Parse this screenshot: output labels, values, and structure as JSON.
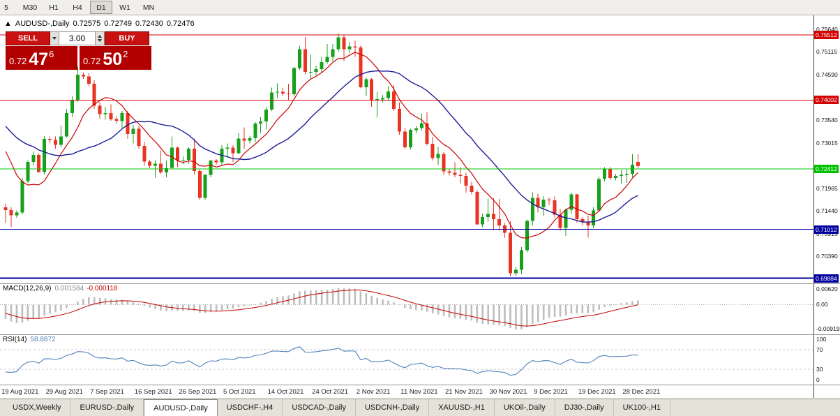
{
  "toolbar": {
    "timeframes": [
      {
        "label": "5",
        "active": false
      },
      {
        "label": "M30",
        "active": false
      },
      {
        "label": "H1",
        "active": false
      },
      {
        "label": "H4",
        "active": false
      },
      {
        "label": "D1",
        "active": true
      },
      {
        "label": "W1",
        "active": false
      },
      {
        "label": "MN",
        "active": false
      }
    ]
  },
  "chart": {
    "header": {
      "marker": "▲",
      "symbol": "AUDUSD-,Daily",
      "open": "0.72575",
      "high": "0.72749",
      "low": "0.72430",
      "close": "0.72476"
    }
  },
  "one_click": {
    "sell_label": "SELL",
    "buy_label": "BUY",
    "volume": "3.00",
    "sell_price_prefix": "0.72",
    "sell_price_big": "47",
    "sell_price_sup": "6",
    "buy_price_prefix": "0.72",
    "buy_price_big": "50",
    "buy_price_sup": "2"
  },
  "indicators": {
    "macd": {
      "name": "MACD(12,26,9)",
      "value": "0.001584",
      "signal_value": "-0.000118",
      "axis": {
        "top": "0.00620",
        "zero": "0.00",
        "bottom": "-0.00919"
      }
    },
    "rsi": {
      "name": "RSI(14)",
      "value": "58.8872",
      "axis": [
        "100",
        "70",
        "30",
        "0"
      ],
      "levels": [
        70,
        30
      ]
    }
  },
  "price_axis": {
    "grid_labels": [
      "0.75640",
      "0.75115",
      "0.74590",
      "0.73540",
      "0.73015",
      "0.71965",
      "0.71440",
      "0.70915",
      "0.70390"
    ]
  },
  "hlines": [
    {
      "price": 0.75512,
      "label": "0.75512",
      "color": "#d40000",
      "width": 1
    },
    {
      "price": 0.74002,
      "label": "0.74002",
      "color": "#d40000",
      "width": 1
    },
    {
      "price": 0.72412,
      "label": "0.72412",
      "color": "#00c300",
      "width": 1
    },
    {
      "price": 0.71012,
      "label": "0.71012",
      "color": "#0000a0",
      "width": 1
    },
    {
      "price": 0.69884,
      "label": "0.69884",
      "color": "#0000a0",
      "width": 2
    }
  ],
  "colors": {
    "candle_up": "#17a01c",
    "candle_down": "#ea3323",
    "ma_fast": "#cc0000",
    "ma_slow": "#1c1c96",
    "macd_hist": "#bdbdbd",
    "macd_signal": "#c00000",
    "rsi_line": "#4f81bd",
    "hline_red": "#d40000",
    "hline_green": "#00c300",
    "hline_blue": "#0000a0",
    "buy_sell_red": "#b20000"
  },
  "chart_data": {
    "type": "candlestick",
    "symbol": "AUDUSD-",
    "timeframe": "Daily",
    "price_range": [
      0.6978,
      0.7596
    ],
    "ma_fast": {
      "period": 8,
      "type": "sma"
    },
    "ma_slow": {
      "period": 20,
      "type": "sma"
    },
    "macd_params": [
      12,
      26,
      9
    ],
    "rsi_period": 14,
    "seed_closes": [
      0.7415,
      0.7442,
      0.7466,
      0.7478,
      0.746,
      0.7438,
      0.741,
      0.739,
      0.74,
      0.7395,
      0.7362,
      0.7395,
      0.7395,
      0.7403,
      0.7356,
      0.7334,
      0.7321,
      0.7378,
      0.7342,
      0.737,
      0.7335,
      0.7319,
      0.726,
      0.7245,
      0.7235
    ],
    "candles": [
      [
        0.7152,
        0.7161,
        0.7117,
        0.7146
      ],
      [
        0.7146,
        0.7152,
        0.7106,
        0.7134
      ],
      [
        0.7134,
        0.7145,
        0.7128,
        0.714
      ],
      [
        0.714,
        0.722,
        0.7136,
        0.7213
      ],
      [
        0.7213,
        0.7261,
        0.7208,
        0.7257
      ],
      [
        0.7257,
        0.7281,
        0.7249,
        0.7273
      ],
      [
        0.7273,
        0.7277,
        0.7232,
        0.7234
      ],
      [
        0.7234,
        0.7317,
        0.7228,
        0.731
      ],
      [
        0.731,
        0.7316,
        0.73,
        0.7308
      ],
      [
        0.7308,
        0.7316,
        0.7288,
        0.7297
      ],
      [
        0.7297,
        0.7341,
        0.7291,
        0.7316
      ],
      [
        0.7316,
        0.738,
        0.7314,
        0.737
      ],
      [
        0.737,
        0.7409,
        0.7361,
        0.74
      ],
      [
        0.74,
        0.7477,
        0.7396,
        0.7459
      ],
      [
        0.7459,
        0.7464,
        0.7449,
        0.7455
      ],
      [
        0.7455,
        0.7462,
        0.7432,
        0.7438
      ],
      [
        0.7438,
        0.7446,
        0.738,
        0.7387
      ],
      [
        0.7387,
        0.7395,
        0.7357,
        0.7368
      ],
      [
        0.7368,
        0.7385,
        0.7355,
        0.737
      ],
      [
        0.737,
        0.739,
        0.7352,
        0.7356
      ],
      [
        0.7356,
        0.7362,
        0.7345,
        0.7352
      ],
      [
        0.7352,
        0.7375,
        0.7336,
        0.737
      ],
      [
        0.737,
        0.7375,
        0.731,
        0.7322
      ],
      [
        0.7322,
        0.7343,
        0.73,
        0.7334
      ],
      [
        0.7334,
        0.734,
        0.7288,
        0.7294
      ],
      [
        0.7294,
        0.7303,
        0.7248,
        0.7258
      ],
      [
        0.7258,
        0.7262,
        0.7243,
        0.7248
      ],
      [
        0.7248,
        0.7261,
        0.7221,
        0.7253
      ],
      [
        0.7253,
        0.7284,
        0.723,
        0.7233
      ],
      [
        0.7233,
        0.726,
        0.7222,
        0.7243
      ],
      [
        0.7243,
        0.7316,
        0.724,
        0.729
      ],
      [
        0.729,
        0.7293,
        0.7245,
        0.726
      ],
      [
        0.726,
        0.727,
        0.7252,
        0.7262
      ],
      [
        0.7262,
        0.7291,
        0.7252,
        0.7288
      ],
      [
        0.7288,
        0.7311,
        0.7228,
        0.7236
      ],
      [
        0.7236,
        0.7242,
        0.7169,
        0.7174
      ],
      [
        0.7174,
        0.723,
        0.717,
        0.7227
      ],
      [
        0.7227,
        0.7262,
        0.7222,
        0.726
      ],
      [
        0.726,
        0.7264,
        0.7251,
        0.7256
      ],
      [
        0.7256,
        0.7296,
        0.725,
        0.7288
      ],
      [
        0.7288,
        0.73,
        0.7267,
        0.729
      ],
      [
        0.729,
        0.7296,
        0.7256,
        0.7277
      ],
      [
        0.7277,
        0.7324,
        0.7275,
        0.7311
      ],
      [
        0.7311,
        0.7337,
        0.7288,
        0.7306
      ],
      [
        0.7306,
        0.7318,
        0.73,
        0.7312
      ],
      [
        0.7312,
        0.7349,
        0.7303,
        0.7346
      ],
      [
        0.7346,
        0.7361,
        0.7324,
        0.7351
      ],
      [
        0.7351,
        0.7384,
        0.7332,
        0.7378
      ],
      [
        0.7378,
        0.7429,
        0.7375,
        0.7418
      ],
      [
        0.7418,
        0.7439,
        0.7405,
        0.7419
      ],
      [
        0.7419,
        0.7429,
        0.741,
        0.7415
      ],
      [
        0.7415,
        0.7438,
        0.7399,
        0.7414
      ],
      [
        0.7414,
        0.7477,
        0.741,
        0.7474
      ],
      [
        0.7474,
        0.7526,
        0.747,
        0.7518
      ],
      [
        0.7518,
        0.7546,
        0.746,
        0.7465
      ],
      [
        0.7465,
        0.7505,
        0.745,
        0.7465
      ],
      [
        0.7465,
        0.748,
        0.7458,
        0.7472
      ],
      [
        0.7472,
        0.75,
        0.7462,
        0.7488
      ],
      [
        0.7488,
        0.753,
        0.7484,
        0.75
      ],
      [
        0.75,
        0.753,
        0.749,
        0.7518
      ],
      [
        0.7518,
        0.7555,
        0.7512,
        0.7545
      ],
      [
        0.7545,
        0.7552,
        0.749,
        0.7518
      ],
      [
        0.7518,
        0.7535,
        0.7508,
        0.7524
      ],
      [
        0.7524,
        0.7537,
        0.75,
        0.7522
      ],
      [
        0.7522,
        0.7527,
        0.7427,
        0.743
      ],
      [
        0.743,
        0.7453,
        0.741,
        0.7448
      ],
      [
        0.7448,
        0.7451,
        0.7385,
        0.74
      ],
      [
        0.74,
        0.7419,
        0.736,
        0.7402
      ],
      [
        0.7402,
        0.7412,
        0.7394,
        0.7405
      ],
      [
        0.7405,
        0.7432,
        0.7398,
        0.742
      ],
      [
        0.742,
        0.7435,
        0.7375,
        0.738
      ],
      [
        0.738,
        0.7394,
        0.732,
        0.7327
      ],
      [
        0.7327,
        0.7336,
        0.7287,
        0.7291
      ],
      [
        0.7291,
        0.7334,
        0.7285,
        0.7331
      ],
      [
        0.7331,
        0.734,
        0.7323,
        0.7335
      ],
      [
        0.7335,
        0.7369,
        0.733,
        0.7347
      ],
      [
        0.7347,
        0.7372,
        0.7295,
        0.7299
      ],
      [
        0.7299,
        0.7315,
        0.726,
        0.7266
      ],
      [
        0.7266,
        0.7292,
        0.725,
        0.7276
      ],
      [
        0.7276,
        0.728,
        0.7227,
        0.7235
      ],
      [
        0.7235,
        0.7242,
        0.7226,
        0.7232
      ],
      [
        0.7232,
        0.7256,
        0.7222,
        0.7227
      ],
      [
        0.7227,
        0.7245,
        0.7208,
        0.7225
      ],
      [
        0.7225,
        0.7232,
        0.7186,
        0.7202
      ],
      [
        0.7202,
        0.7211,
        0.7182,
        0.7188
      ],
      [
        0.7188,
        0.7192,
        0.7112,
        0.7113
      ],
      [
        0.7113,
        0.7138,
        0.7106,
        0.713
      ],
      [
        0.713,
        0.7172,
        0.7118,
        0.7137
      ],
      [
        0.7137,
        0.7173,
        0.71,
        0.7125
      ],
      [
        0.7125,
        0.7172,
        0.7098,
        0.711
      ],
      [
        0.711,
        0.7116,
        0.7082,
        0.7093
      ],
      [
        0.7093,
        0.712,
        0.6993,
        0.7
      ],
      [
        0.7,
        0.7015,
        0.6993,
        0.7008
      ],
      [
        0.7008,
        0.706,
        0.6997,
        0.7053
      ],
      [
        0.7053,
        0.7124,
        0.7048,
        0.7121
      ],
      [
        0.7121,
        0.7187,
        0.711,
        0.7174
      ],
      [
        0.7174,
        0.7184,
        0.714,
        0.7152
      ],
      [
        0.7152,
        0.7178,
        0.7132,
        0.717
      ],
      [
        0.717,
        0.7175,
        0.7158,
        0.7168
      ],
      [
        0.7168,
        0.7177,
        0.7129,
        0.7135
      ],
      [
        0.7135,
        0.7148,
        0.7098,
        0.7105
      ],
      [
        0.7105,
        0.715,
        0.7086,
        0.7147
      ],
      [
        0.7147,
        0.7186,
        0.7138,
        0.7182
      ],
      [
        0.7182,
        0.7184,
        0.7117,
        0.7125
      ],
      [
        0.7125,
        0.713,
        0.711,
        0.7118
      ],
      [
        0.7118,
        0.7133,
        0.7082,
        0.711
      ],
      [
        0.711,
        0.7152,
        0.7104,
        0.7145
      ],
      [
        0.7145,
        0.7223,
        0.7142,
        0.7218
      ],
      [
        0.7218,
        0.7245,
        0.7212,
        0.724
      ],
      [
        0.724,
        0.7245,
        0.7215,
        0.722
      ],
      [
        0.722,
        0.723,
        0.7214,
        0.7225
      ],
      [
        0.7225,
        0.7238,
        0.7207,
        0.7227
      ],
      [
        0.7227,
        0.7239,
        0.7209,
        0.723
      ],
      [
        0.723,
        0.7275,
        0.7222,
        0.7251
      ],
      [
        0.72575,
        0.72749,
        0.7243,
        0.72476
      ]
    ],
    "x_labels": [
      {
        "i": 0,
        "t": "19 Aug 2021"
      },
      {
        "i": 8,
        "t": "29 Aug 2021"
      },
      {
        "i": 16,
        "t": "7 Sep 2021"
      },
      {
        "i": 24,
        "t": "16 Sep 2021"
      },
      {
        "i": 32,
        "t": "26 Sep 2021"
      },
      {
        "i": 40,
        "t": "5 Oct 2021"
      },
      {
        "i": 48,
        "t": "14 Oct 2021"
      },
      {
        "i": 56,
        "t": "24 Oct 2021"
      },
      {
        "i": 64,
        "t": "2 Nov 2021"
      },
      {
        "i": 72,
        "t": "11 Nov 2021"
      },
      {
        "i": 80,
        "t": "21 Nov 2021"
      },
      {
        "i": 88,
        "t": "30 Nov 2021"
      },
      {
        "i": 96,
        "t": "9 Dec 2021"
      },
      {
        "i": 104,
        "t": "19 Dec 2021"
      },
      {
        "i": 112,
        "t": "28 Dec 2021"
      }
    ]
  },
  "tabs": [
    {
      "label": "USDX,Weekly",
      "active": false
    },
    {
      "label": "EURUSD-,Daily",
      "active": false
    },
    {
      "label": "AUDUSD-,Daily",
      "active": true
    },
    {
      "label": "USDCHF-,H4",
      "active": false
    },
    {
      "label": "USDCAD-,Daily",
      "active": false
    },
    {
      "label": "USDCNH-,Daily",
      "active": false
    },
    {
      "label": "XAUUSD-,H1",
      "active": false
    },
    {
      "label": "UKOil-,Daily",
      "active": false
    },
    {
      "label": "DJ30-,Daily",
      "active": false
    },
    {
      "label": "UK100-,H1",
      "active": false
    }
  ]
}
